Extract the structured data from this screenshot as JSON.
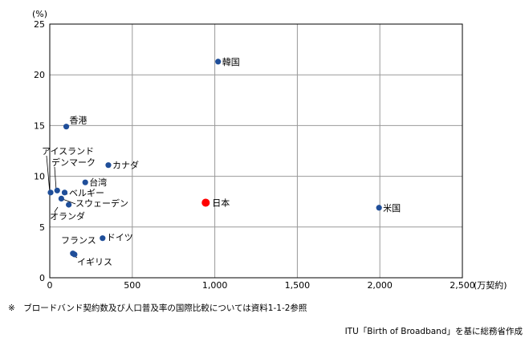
{
  "chart_data": {
    "type": "scatter",
    "y_unit_label": "(%)",
    "x_unit_label": "(万契約)",
    "xlim": [
      0,
      2500
    ],
    "ylim": [
      0,
      25
    ],
    "x_ticks": [
      0,
      500,
      1000,
      1500,
      2000,
      2500
    ],
    "x_tick_labels": [
      "0",
      "500",
      "1,000",
      "1,500",
      "2,000",
      "2,500"
    ],
    "y_ticks": [
      0,
      5,
      10,
      15,
      20,
      25
    ],
    "y_tick_labels": [
      "0",
      "5",
      "10",
      "15",
      "20",
      "25"
    ],
    "grid": true,
    "colors": {
      "point": "#1f4e99",
      "highlight": "#ff0000",
      "grid": "#999999"
    },
    "points": [
      {
        "label": "韓国",
        "x": 1020,
        "y": 21.3
      },
      {
        "label": "香港",
        "x": 100,
        "y": 14.9
      },
      {
        "label": "カナダ",
        "x": 355,
        "y": 11.1
      },
      {
        "label": "アイスランド",
        "x": 5,
        "y": 8.4
      },
      {
        "label": "デンマーク",
        "x": 45,
        "y": 8.6
      },
      {
        "label": "台湾",
        "x": 215,
        "y": 9.4
      },
      {
        "label": "ベルギー",
        "x": 90,
        "y": 8.4
      },
      {
        "label": "スウェーデン",
        "x": 70,
        "y": 7.8
      },
      {
        "label": "オランダ",
        "x": 115,
        "y": 7.2
      },
      {
        "label": "日本",
        "x": 945,
        "y": 7.4,
        "highlight": true
      },
      {
        "label": "米国",
        "x": 1995,
        "y": 6.9
      },
      {
        "label": "ドイツ",
        "x": 320,
        "y": 3.9
      },
      {
        "label": "フランス",
        "x": 140,
        "y": 2.4
      },
      {
        "label": "イギリス",
        "x": 150,
        "y": 2.3
      }
    ]
  },
  "footnote": "※　ブロードバンド契約数及び人口普及率の国際比較については資料1-1-2参照",
  "source": "ITU「Birth of Broadband」を基に総務省作成"
}
